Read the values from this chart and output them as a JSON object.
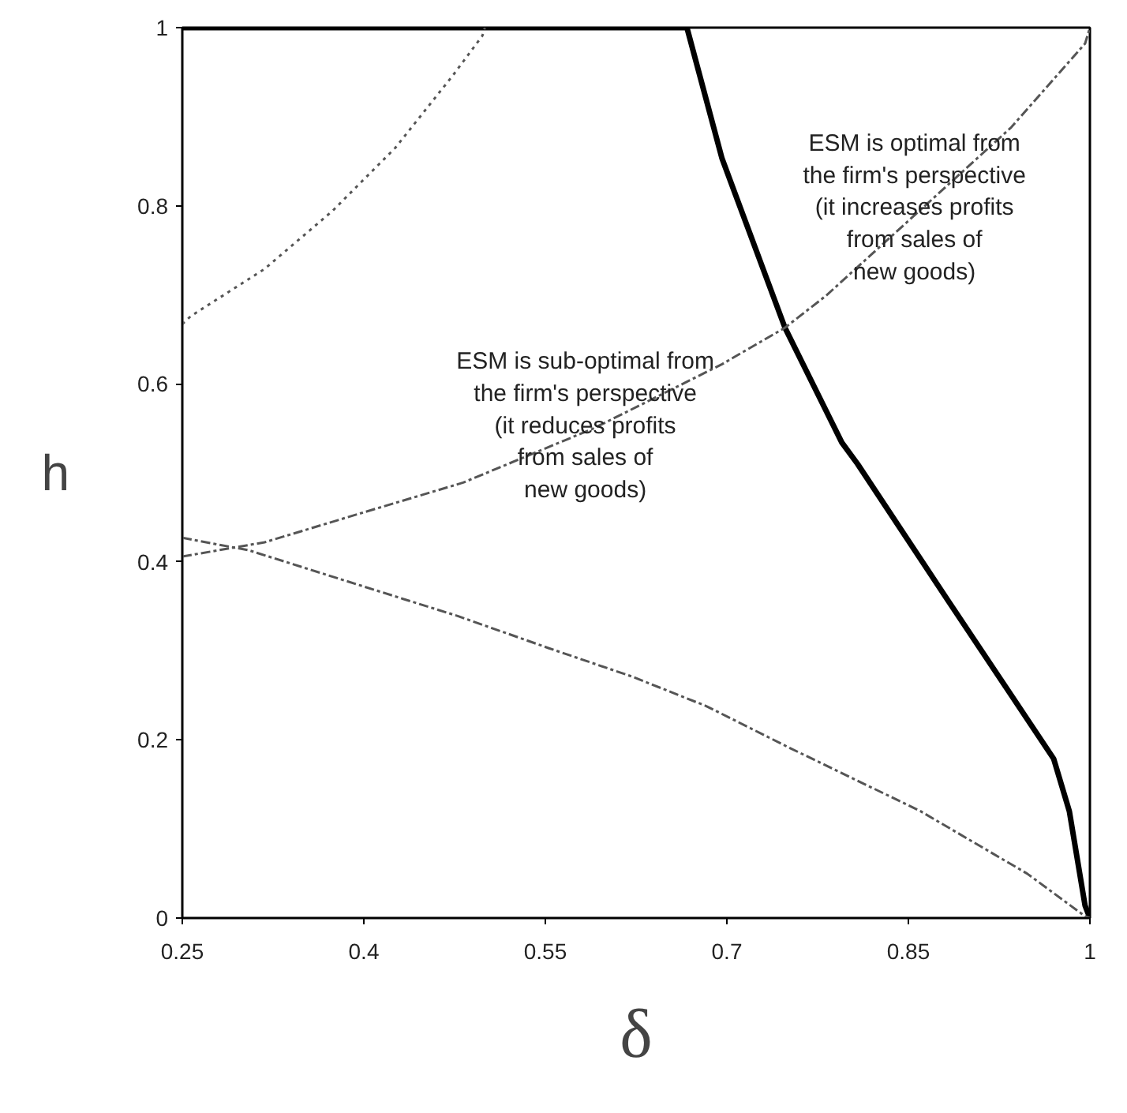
{
  "chart_data": {
    "type": "line",
    "xlabel": "δ",
    "ylabel": "h",
    "xlim": [
      0.25,
      1
    ],
    "ylim": [
      0,
      1
    ],
    "xticks": [
      0.25,
      0.4,
      0.55,
      0.7,
      0.85,
      1
    ],
    "yticks": [
      0,
      0.2,
      0.4,
      0.6,
      0.8,
      1
    ],
    "grid": false,
    "series": [
      {
        "color": "#000000",
        "line_style": "solid",
        "x": [
          0.25,
          0.667,
          0.696,
          0.748,
          0.795,
          0.808,
          0.883,
          0.97,
          0.983,
          0.996,
          1
        ],
        "values": [
          1,
          1,
          0.853,
          0.663,
          0.534,
          0.51,
          0.356,
          0.179,
          0.12,
          0.014,
          0
        ]
      },
      {
        "color": "#555555",
        "line_style": "dotted",
        "x": [
          0.25,
          0.257,
          0.318,
          0.374,
          0.426,
          0.474,
          0.498,
          0.5
        ],
        "values": [
          0.667,
          0.676,
          0.729,
          0.794,
          0.865,
          0.947,
          0.991,
          1
        ]
      },
      {
        "color": "#555555",
        "line_style": "dashed",
        "x": [
          0.25,
          0.318,
          0.396,
          0.482,
          0.59,
          0.696,
          0.748,
          0.782,
          0.935,
          0.996,
          1
        ],
        "values": [
          0.406,
          0.422,
          0.454,
          0.489,
          0.55,
          0.622,
          0.663,
          0.699,
          0.888,
          0.982,
          1
        ]
      },
      {
        "color": "#555555",
        "line_style": "dashed",
        "x": [
          0.25,
          0.305,
          0.396,
          0.478,
          0.553,
          0.622,
          0.683,
          0.752,
          0.86,
          0.948,
          0.996,
          1
        ],
        "values": [
          0.427,
          0.413,
          0.374,
          0.339,
          0.303,
          0.271,
          0.238,
          0.191,
          0.12,
          0.05,
          0.002,
          0
        ]
      }
    ],
    "annotations": [
      "ESM is optimal from\nthe firm's perspective\n(it increases profits\nfrom sales of\nnew goods)",
      "ESM is sub-optimal from\nthe firm's perspective\n(it reduces profits\nfrom sales of\nnew goods)"
    ]
  }
}
